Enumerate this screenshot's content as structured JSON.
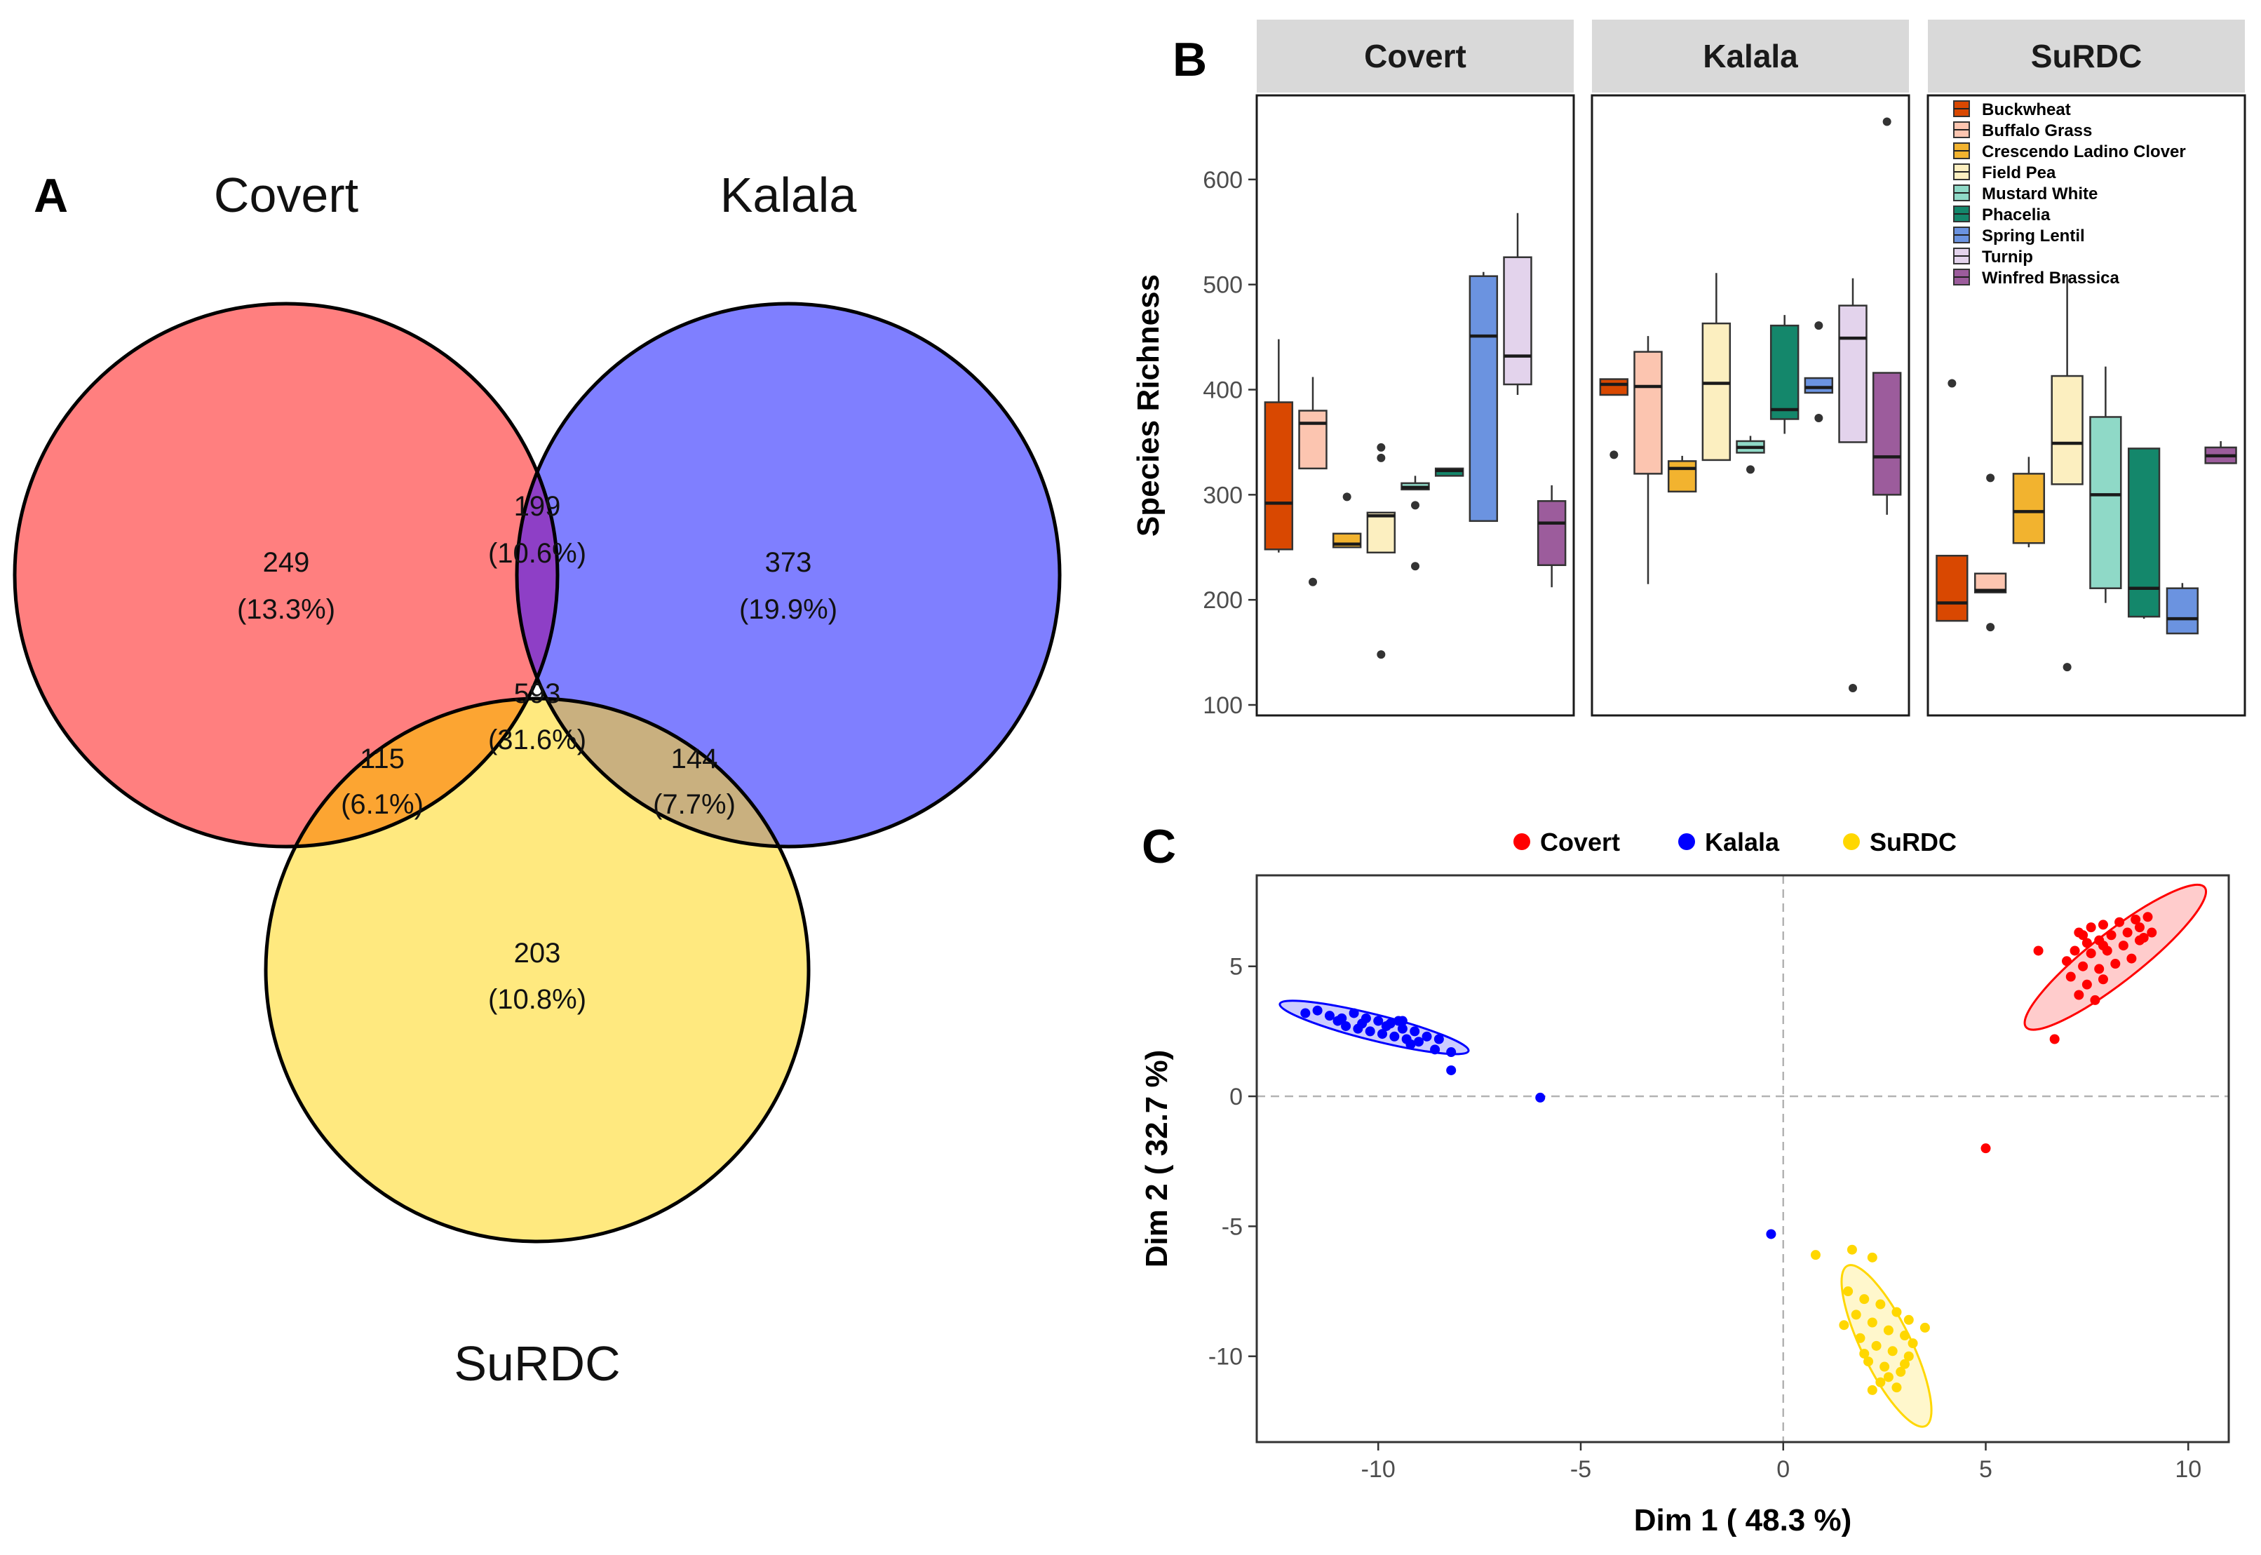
{
  "panels": {
    "a": "A",
    "b": "B",
    "c": "C"
  },
  "chart_data": [
    {
      "type": "venn",
      "sets": [
        {
          "name": "Covert",
          "color": "#ff7f7f"
        },
        {
          "name": "Kalala",
          "color": "#7f7fff"
        },
        {
          "name": "SuRDC",
          "color": "#ffe97f"
        }
      ],
      "regions": [
        {
          "key": "covert_only",
          "count": "249",
          "pct": "(13.3%)",
          "color": "#ff7f7f"
        },
        {
          "key": "kalala_only",
          "count": "373",
          "pct": "(19.9%)",
          "color": "#7f7fff"
        },
        {
          "key": "surdc_only",
          "count": "203",
          "pct": "(10.8%)",
          "color": "#ffe97f"
        },
        {
          "key": "covert_kalala",
          "count": "199",
          "pct": "(10.6%)",
          "color": "#8e3fc6"
        },
        {
          "key": "covert_surdc",
          "count": "115",
          "pct": "(6.1%)",
          "color": "#fca532"
        },
        {
          "key": "kalala_surdc",
          "count": "144",
          "pct": "(7.7%)",
          "color": "#c9b07f"
        },
        {
          "key": "all",
          "count": "593",
          "pct": "(31.6%)",
          "color": "#c98056"
        }
      ]
    },
    {
      "type": "boxplot",
      "ylabel": "Species Richness",
      "ylim": [
        90,
        680
      ],
      "yticks": [
        100,
        200,
        300,
        400,
        500,
        600
      ],
      "facets": [
        "Covert",
        "Kalala",
        "SuRDC"
      ],
      "legend": [
        {
          "name": "Buckwheat",
          "color": "#d94801"
        },
        {
          "name": "Buffalo Grass",
          "color": "#fcc5b0"
        },
        {
          "name": "Crescendo Ladino Clover",
          "color": "#f2b32f"
        },
        {
          "name": "Field Pea",
          "color": "#fcefc0"
        },
        {
          "name": "Mustard White",
          "color": "#8fd9c7"
        },
        {
          "name": "Phacelia",
          "color": "#14876b"
        },
        {
          "name": "Spring Lentil",
          "color": "#6b93e0"
        },
        {
          "name": "Turnip",
          "color": "#e3d3ec"
        },
        {
          "name": "Winfred Brassica",
          "color": "#9c5c9c"
        }
      ],
      "boxes": [
        {
          "facet": "Covert",
          "crop": "Buckwheat",
          "min": 245,
          "q1": 248,
          "median": 292,
          "q3": 388,
          "max": 448,
          "outliers": []
        },
        {
          "facet": "Covert",
          "crop": "Buffalo Grass",
          "min": 325,
          "q1": 325,
          "median": 368,
          "q3": 380,
          "max": 412,
          "outliers": [
            217
          ]
        },
        {
          "facet": "Covert",
          "crop": "Crescendo Ladino Clover",
          "min": 250,
          "q1": 250,
          "median": 253,
          "q3": 263,
          "max": 263,
          "outliers": [
            298
          ]
        },
        {
          "facet": "Covert",
          "crop": "Field Pea",
          "min": 245,
          "q1": 245,
          "median": 280,
          "q3": 283,
          "max": 283,
          "outliers": [
            345,
            335,
            148
          ]
        },
        {
          "facet": "Covert",
          "crop": "Mustard White",
          "min": 305,
          "q1": 305,
          "median": 307,
          "q3": 311,
          "max": 318,
          "outliers": [
            290,
            232
          ]
        },
        {
          "facet": "Covert",
          "crop": "Phacelia",
          "min": 318,
          "q1": 318,
          "median": 323,
          "q3": 325,
          "max": 325,
          "outliers": []
        },
        {
          "facet": "Covert",
          "crop": "Spring Lentil",
          "min": 275,
          "q1": 275,
          "median": 451,
          "q3": 508,
          "max": 512,
          "outliers": []
        },
        {
          "facet": "Covert",
          "crop": "Turnip",
          "min": 395,
          "q1": 405,
          "median": 432,
          "q3": 526,
          "max": 568,
          "outliers": []
        },
        {
          "facet": "Covert",
          "crop": "Winfred Brassica",
          "min": 212,
          "q1": 233,
          "median": 273,
          "q3": 294,
          "max": 309,
          "outliers": []
        },
        {
          "facet": "Kalala",
          "crop": "Buckwheat",
          "min": 395,
          "q1": 395,
          "median": 405,
          "q3": 410,
          "max": 410,
          "outliers": [
            338
          ]
        },
        {
          "facet": "Kalala",
          "crop": "Buffalo Grass",
          "min": 215,
          "q1": 320,
          "median": 403,
          "q3": 436,
          "max": 451,
          "outliers": []
        },
        {
          "facet": "Kalala",
          "crop": "Crescendo Ladino Clover",
          "min": 303,
          "q1": 303,
          "median": 325,
          "q3": 332,
          "max": 337,
          "outliers": []
        },
        {
          "facet": "Kalala",
          "crop": "Field Pea",
          "min": 333,
          "q1": 333,
          "median": 406,
          "q3": 463,
          "max": 511,
          "outliers": []
        },
        {
          "facet": "Kalala",
          "crop": "Mustard White",
          "min": 340,
          "q1": 340,
          "median": 345,
          "q3": 351,
          "max": 356,
          "outliers": [
            324
          ]
        },
        {
          "facet": "Kalala",
          "crop": "Phacelia",
          "min": 358,
          "q1": 372,
          "median": 381,
          "q3": 461,
          "max": 471,
          "outliers": []
        },
        {
          "facet": "Kalala",
          "crop": "Spring Lentil",
          "min": 397,
          "q1": 397,
          "median": 402,
          "q3": 411,
          "max": 411,
          "outliers": [
            461,
            373
          ]
        },
        {
          "facet": "Kalala",
          "crop": "Turnip",
          "min": 350,
          "q1": 350,
          "median": 449,
          "q3": 480,
          "max": 506,
          "outliers": [
            116
          ]
        },
        {
          "facet": "Kalala",
          "crop": "Winfred Brassica",
          "min": 281,
          "q1": 300,
          "median": 336,
          "q3": 416,
          "max": 416,
          "outliers": [
            655
          ]
        },
        {
          "facet": "SuRDC",
          "crop": "Buckwheat",
          "min": 180,
          "q1": 180,
          "median": 197,
          "q3": 242,
          "max": 242,
          "outliers": [
            406
          ]
        },
        {
          "facet": "SuRDC",
          "crop": "Buffalo Grass",
          "min": 207,
          "q1": 207,
          "median": 209,
          "q3": 225,
          "max": 225,
          "outliers": [
            316,
            174
          ]
        },
        {
          "facet": "SuRDC",
          "crop": "Crescendo Ladino Clover",
          "min": 250,
          "q1": 254,
          "median": 284,
          "q3": 320,
          "max": 336,
          "outliers": []
        },
        {
          "facet": "SuRDC",
          "crop": "Field Pea",
          "min": 310,
          "q1": 310,
          "median": 349,
          "q3": 413,
          "max": 508,
          "outliers": [
            136
          ]
        },
        {
          "facet": "SuRDC",
          "crop": "Mustard White",
          "min": 197,
          "q1": 211,
          "median": 300,
          "q3": 374,
          "max": 422,
          "outliers": []
        },
        {
          "facet": "SuRDC",
          "crop": "Phacelia",
          "min": 182,
          "q1": 184,
          "median": 211,
          "q3": 344,
          "max": 344,
          "outliers": []
        },
        {
          "facet": "SuRDC",
          "crop": "Spring Lentil",
          "min": 168,
          "q1": 168,
          "median": 182,
          "q3": 211,
          "max": 216,
          "outliers": []
        },
        {
          "facet": "SuRDC",
          "crop": "Winfred Brassica",
          "min": 330,
          "q1": 330,
          "median": 337,
          "q3": 345,
          "max": 351,
          "outliers": []
        }
      ]
    },
    {
      "type": "scatter",
      "xlabel": "Dim 1 ( 48.3 %)",
      "ylabel": "Dim 2 ( 32.7 %)",
      "xlim": [
        -13,
        11
      ],
      "ylim": [
        -13.3,
        8.5
      ],
      "xticks": [
        -10,
        -5,
        0,
        5,
        10
      ],
      "yticks": [
        -10,
        -5,
        0,
        5
      ],
      "ticklabels_x": [
        "-10",
        "-5",
        "0",
        "5",
        "10"
      ],
      "ticklabels_y": [
        "-10",
        "-5",
        "0",
        "5"
      ],
      "legend": [
        {
          "name": "Covert",
          "color": "#ff0000"
        },
        {
          "name": "Kalala",
          "color": "#0000ff"
        },
        {
          "name": "SuRDC",
          "color": "#ffd700"
        }
      ],
      "ellipses": [
        {
          "group": "Covert",
          "cx": 8.2,
          "cy": 5.35,
          "rx": 2.8,
          "ry": 0.95,
          "angle": 38
        },
        {
          "group": "Kalala",
          "cx": -10.1,
          "cy": 2.65,
          "rx": 2.4,
          "ry": 0.5,
          "angle": -14
        },
        {
          "group": "SuRDC",
          "cx": 2.55,
          "cy": -9.6,
          "rx": 2.2,
          "ry": 0.95,
          "angle": -64
        }
      ],
      "series": [
        {
          "name": "Covert",
          "points": [
            [
              7.3,
              6.3
            ],
            [
              7.6,
              6.5
            ],
            [
              7.9,
              6.6
            ],
            [
              8.3,
              6.7
            ],
            [
              8.7,
              6.8
            ],
            [
              9.0,
              6.9
            ],
            [
              8.8,
              6.5
            ],
            [
              8.5,
              6.3
            ],
            [
              8.1,
              6.2
            ],
            [
              7.8,
              6.0
            ],
            [
              7.5,
              5.9
            ],
            [
              7.2,
              5.6
            ],
            [
              7.6,
              5.5
            ],
            [
              8.0,
              5.6
            ],
            [
              8.4,
              5.8
            ],
            [
              8.8,
              6.0
            ],
            [
              9.1,
              6.3
            ],
            [
              7.0,
              5.2
            ],
            [
              7.4,
              5.0
            ],
            [
              7.8,
              4.9
            ],
            [
              8.2,
              5.1
            ],
            [
              8.6,
              5.3
            ],
            [
              7.1,
              4.6
            ],
            [
              7.5,
              4.3
            ],
            [
              7.9,
              4.5
            ],
            [
              7.3,
              3.9
            ],
            [
              7.7,
              3.7
            ],
            [
              6.3,
              5.6
            ],
            [
              6.7,
              2.2
            ],
            [
              5.0,
              -2.0
            ],
            [
              8.9,
              6.1
            ],
            [
              7.9,
              5.8
            ],
            [
              7.4,
              6.2
            ]
          ]
        },
        {
          "name": "Kalala",
          "points": [
            [
              -11.8,
              3.2
            ],
            [
              -11.5,
              3.3
            ],
            [
              -11.2,
              3.1
            ],
            [
              -10.9,
              3.0
            ],
            [
              -10.6,
              3.2
            ],
            [
              -10.3,
              3.0
            ],
            [
              -10.0,
              2.9
            ],
            [
              -9.7,
              2.8
            ],
            [
              -9.4,
              2.6
            ],
            [
              -9.1,
              2.5
            ],
            [
              -8.8,
              2.3
            ],
            [
              -8.5,
              2.2
            ],
            [
              -10.8,
              2.7
            ],
            [
              -10.5,
              2.6
            ],
            [
              -10.2,
              2.5
            ],
            [
              -9.9,
              2.4
            ],
            [
              -9.6,
              2.3
            ],
            [
              -9.3,
              2.2
            ],
            [
              -9.0,
              2.1
            ],
            [
              -11.0,
              2.9
            ],
            [
              -10.4,
              2.8
            ],
            [
              -9.8,
              2.7
            ],
            [
              -9.5,
              2.9
            ],
            [
              -9.2,
              2.0
            ],
            [
              -8.6,
              1.8
            ],
            [
              -8.2,
              1.7
            ],
            [
              -8.2,
              1.0
            ],
            [
              -9.4,
              2.9
            ],
            [
              -6.0,
              -0.05
            ],
            [
              -0.3,
              -5.3
            ]
          ]
        },
        {
          "name": "SuRDC",
          "points": [
            [
              1.7,
              -5.9
            ],
            [
              2.2,
              -6.2
            ],
            [
              0.8,
              -6.1
            ],
            [
              1.6,
              -7.5
            ],
            [
              2.0,
              -7.8
            ],
            [
              2.4,
              -8.0
            ],
            [
              2.8,
              -8.3
            ],
            [
              3.1,
              -8.6
            ],
            [
              1.8,
              -8.4
            ],
            [
              2.2,
              -8.7
            ],
            [
              2.6,
              -9.0
            ],
            [
              3.0,
              -9.2
            ],
            [
              1.9,
              -9.3
            ],
            [
              2.3,
              -9.6
            ],
            [
              2.7,
              -9.8
            ],
            [
              3.1,
              -10.0
            ],
            [
              2.1,
              -10.2
            ],
            [
              2.5,
              -10.4
            ],
            [
              2.9,
              -10.6
            ],
            [
              2.4,
              -11.0
            ],
            [
              2.8,
              -11.2
            ],
            [
              3.2,
              -9.5
            ],
            [
              3.5,
              -8.9
            ],
            [
              1.5,
              -8.8
            ],
            [
              2.0,
              -9.9
            ],
            [
              2.6,
              -10.8
            ],
            [
              3.0,
              -10.3
            ],
            [
              2.2,
              -11.3
            ]
          ]
        }
      ]
    }
  ],
  "venn_titles": {
    "covert": "Covert",
    "kalala": "Kalala",
    "surdc": "SuRDC"
  }
}
